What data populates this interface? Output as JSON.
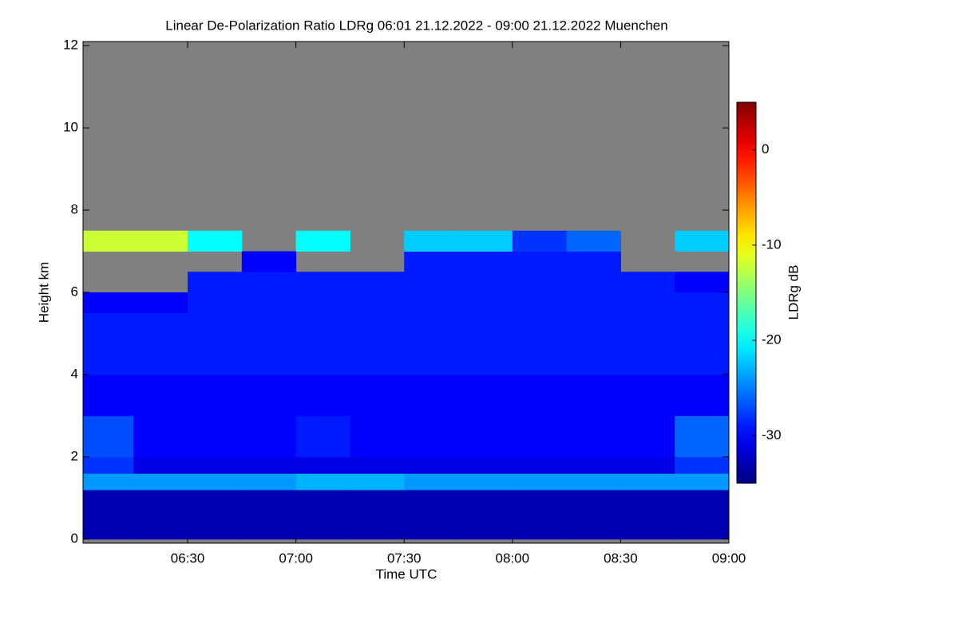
{
  "chart_data": {
    "type": "heatmap",
    "title": "Linear De-Polarization Ratio LDRg   06:01 21.12.2022 - 09:00 21.12.2022 Muenchen",
    "x_label": "Time UTC",
    "y_label": "Height km",
    "colorbar_label": "LDRg dB",
    "colormap": "jet",
    "missing_color": "#808080",
    "xlim": [
      6.0167,
      9.0
    ],
    "xticks": [
      {
        "value": 6.5,
        "label": "06:30"
      },
      {
        "value": 7.0,
        "label": "07:00"
      },
      {
        "value": 7.5,
        "label": "07:30"
      },
      {
        "value": 8.0,
        "label": "08:00"
      },
      {
        "value": 8.5,
        "label": "08:30"
      },
      {
        "value": 9.0,
        "label": "09:00"
      }
    ],
    "ylim": [
      -0.1,
      12.1
    ],
    "yticks": [
      0,
      2,
      4,
      6,
      8,
      10,
      12
    ],
    "clim": [
      -35,
      5
    ],
    "cticks": [
      -30,
      -20,
      -10,
      0
    ],
    "x_bins": [
      6.0167,
      6.25,
      6.5,
      6.75,
      7.0,
      7.25,
      7.5,
      7.75,
      8.0,
      8.25,
      8.5,
      8.75,
      9.0
    ],
    "y_bins": [
      0,
      1.2,
      1.6,
      2,
      3,
      4,
      5,
      5.5,
      6,
      6.5,
      7,
      7.5
    ],
    "values": [
      [
        -33,
        -33,
        -33,
        -33,
        -33,
        -33,
        -33,
        -33,
        -33,
        -33,
        -33,
        -33
      ],
      [
        -24,
        -24,
        -24,
        -24,
        -23,
        -23,
        -24,
        -24,
        -24,
        -24,
        -24,
        -24
      ],
      [
        -28,
        -31,
        -31,
        -31,
        -31,
        -31,
        -31,
        -31,
        -31,
        -31,
        -31,
        -28
      ],
      [
        -27,
        -30,
        -30,
        -30,
        -29,
        -30,
        -30,
        -30,
        -30,
        -30,
        -30,
        -26
      ],
      [
        -30,
        -30,
        -30,
        -30,
        -30,
        -30,
        -30,
        -30,
        -30,
        -30,
        -30,
        -30
      ],
      [
        -29,
        -29,
        -29,
        -29,
        -29,
        -29,
        -29,
        -29,
        -29,
        -29,
        -29,
        -29
      ],
      [
        -29,
        -29,
        -29,
        -29,
        -29,
        -29,
        -29,
        -29,
        -29,
        -29,
        -29,
        -29
      ],
      [
        -30,
        -30,
        -29,
        -29,
        -29,
        -29,
        -29,
        -29,
        -29,
        -29,
        -29,
        -29
      ],
      [
        null,
        null,
        -29,
        -29,
        -29,
        -29,
        -29,
        -29,
        -29,
        -29,
        -29,
        -30
      ],
      [
        null,
        null,
        null,
        -30,
        null,
        null,
        -29,
        -29,
        -29,
        -29,
        null,
        null
      ],
      [
        -12,
        -12,
        -20,
        null,
        -20,
        null,
        -22,
        -22,
        -28,
        -26,
        null,
        -22
      ]
    ]
  }
}
